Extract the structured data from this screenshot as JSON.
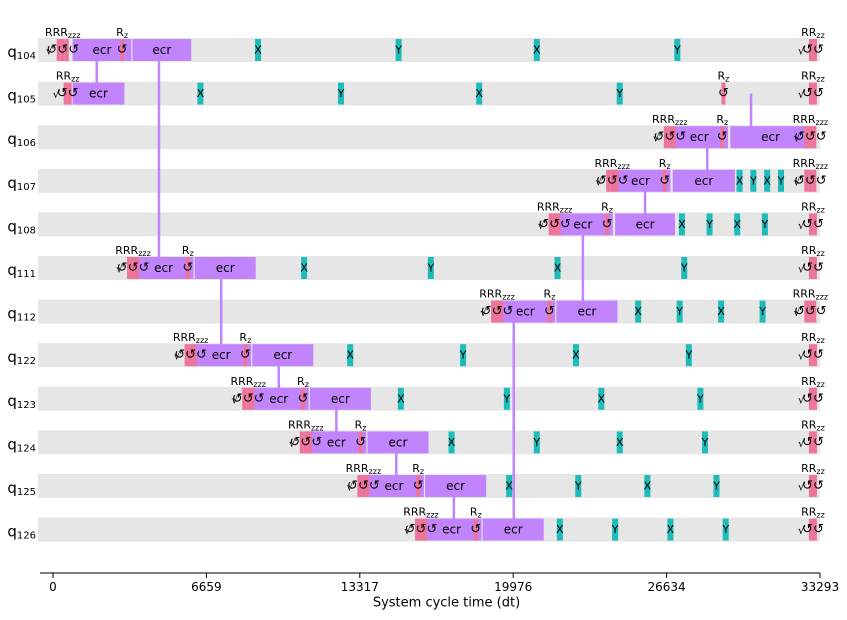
{
  "diagram": {
    "type": "quantum-circuit-timeline",
    "xlabel": "System cycle time (dt)",
    "x_ticks": [
      0,
      6659,
      13317,
      19976,
      26634,
      33293
    ],
    "x_range": [
      0,
      33293
    ],
    "colors": {
      "lane": "#e6e6e6",
      "rz": "#ee7499",
      "sx": "#ee7499",
      "ecr": "#c184fc",
      "single": "#1ebbbb",
      "link": "#c184fc",
      "axis": "#000000"
    },
    "qubits": [
      {
        "name": "q",
        "sub": "104"
      },
      {
        "name": "q",
        "sub": "105"
      },
      {
        "name": "q",
        "sub": "106"
      },
      {
        "name": "q",
        "sub": "107"
      },
      {
        "name": "q",
        "sub": "108"
      },
      {
        "name": "q",
        "sub": "111"
      },
      {
        "name": "q",
        "sub": "112"
      },
      {
        "name": "q",
        "sub": "122"
      },
      {
        "name": "q",
        "sub": "123"
      },
      {
        "name": "q",
        "sub": "124"
      },
      {
        "name": "q",
        "sub": "125"
      },
      {
        "name": "q",
        "sub": "126"
      }
    ],
    "labels": {
      "ecr": "ecr",
      "x": "X",
      "y": "Y",
      "rz": "R",
      "rz_sub": "z",
      "sx": "√X"
    },
    "ecr_blocks": [
      {
        "lane": 0,
        "start": 850,
        "end": 3400
      },
      {
        "lane": 0,
        "start": 3450,
        "end": 6000
      },
      {
        "lane": 1,
        "start": 850,
        "end": 3100
      },
      {
        "lane": 2,
        "start": 26800,
        "end": 29300
      },
      {
        "lane": 2,
        "start": 29400,
        "end": 32900
      },
      {
        "lane": 3,
        "start": 24200,
        "end": 26800
      },
      {
        "lane": 3,
        "start": 26900,
        "end": 29600
      },
      {
        "lane": 4,
        "start": 21700,
        "end": 24300
      },
      {
        "lane": 4,
        "start": 24400,
        "end": 27000
      },
      {
        "lane": 5,
        "start": 3500,
        "end": 6100
      },
      {
        "lane": 5,
        "start": 6150,
        "end": 8800
      },
      {
        "lane": 6,
        "start": 19200,
        "end": 21800
      },
      {
        "lane": 6,
        "start": 21850,
        "end": 24500
      },
      {
        "lane": 7,
        "start": 6000,
        "end": 8600
      },
      {
        "lane": 7,
        "start": 8650,
        "end": 11300
      },
      {
        "lane": 8,
        "start": 8500,
        "end": 11100
      },
      {
        "lane": 8,
        "start": 11150,
        "end": 13800
      },
      {
        "lane": 9,
        "start": 11000,
        "end": 13600
      },
      {
        "lane": 9,
        "start": 13650,
        "end": 16300
      },
      {
        "lane": 10,
        "start": 13500,
        "end": 16100
      },
      {
        "lane": 10,
        "start": 16150,
        "end": 18800
      },
      {
        "lane": 11,
        "start": 16000,
        "end": 18600
      },
      {
        "lane": 11,
        "start": 18650,
        "end": 21300
      }
    ],
    "links": [
      {
        "from": 0,
        "to": 1,
        "x": 1900
      },
      {
        "from": 0,
        "to": 5,
        "x": 4600
      },
      {
        "from": 2,
        "to": 1,
        "x": 30300
      },
      {
        "from": 2,
        "to": 3,
        "x": 28400
      },
      {
        "from": 3,
        "to": 4,
        "x": 25700
      },
      {
        "from": 4,
        "to": 6,
        "x": 23000
      },
      {
        "from": 5,
        "to": 7,
        "x": 7300
      },
      {
        "from": 7,
        "to": 8,
        "x": 9800
      },
      {
        "from": 8,
        "to": 9,
        "x": 12300
      },
      {
        "from": 9,
        "to": 10,
        "x": 14900
      },
      {
        "from": 10,
        "to": 11,
        "x": 17400
      },
      {
        "from": 6,
        "to": 11,
        "x": 20000
      }
    ],
    "single_gates": [
      {
        "lane": 0,
        "t": 8900,
        "g": "x"
      },
      {
        "lane": 0,
        "t": 15000,
        "g": "y"
      },
      {
        "lane": 0,
        "t": 21000,
        "g": "x"
      },
      {
        "lane": 0,
        "t": 27100,
        "g": "y"
      },
      {
        "lane": 1,
        "t": 6400,
        "g": "x"
      },
      {
        "lane": 1,
        "t": 12500,
        "g": "y"
      },
      {
        "lane": 1,
        "t": 18500,
        "g": "x"
      },
      {
        "lane": 1,
        "t": 24600,
        "g": "y"
      },
      {
        "lane": 3,
        "t": 29800,
        "g": "x"
      },
      {
        "lane": 3,
        "t": 30400,
        "g": "y"
      },
      {
        "lane": 3,
        "t": 31000,
        "g": "x"
      },
      {
        "lane": 3,
        "t": 31600,
        "g": "y"
      },
      {
        "lane": 4,
        "t": 27300,
        "g": "x"
      },
      {
        "lane": 4,
        "t": 28500,
        "g": "y"
      },
      {
        "lane": 4,
        "t": 29700,
        "g": "x"
      },
      {
        "lane": 4,
        "t": 30900,
        "g": "y"
      },
      {
        "lane": 5,
        "t": 10900,
        "g": "x"
      },
      {
        "lane": 5,
        "t": 16400,
        "g": "y"
      },
      {
        "lane": 5,
        "t": 21900,
        "g": "x"
      },
      {
        "lane": 5,
        "t": 27400,
        "g": "y"
      },
      {
        "lane": 6,
        "t": 25400,
        "g": "x"
      },
      {
        "lane": 6,
        "t": 27200,
        "g": "y"
      },
      {
        "lane": 6,
        "t": 29000,
        "g": "x"
      },
      {
        "lane": 6,
        "t": 30800,
        "g": "y"
      },
      {
        "lane": 7,
        "t": 12900,
        "g": "x"
      },
      {
        "lane": 7,
        "t": 17800,
        "g": "y"
      },
      {
        "lane": 7,
        "t": 22700,
        "g": "x"
      },
      {
        "lane": 7,
        "t": 27600,
        "g": "y"
      },
      {
        "lane": 8,
        "t": 15100,
        "g": "x"
      },
      {
        "lane": 8,
        "t": 19700,
        "g": "y"
      },
      {
        "lane": 8,
        "t": 23800,
        "g": "x"
      },
      {
        "lane": 8,
        "t": 28100,
        "g": "y"
      },
      {
        "lane": 9,
        "t": 17300,
        "g": "x"
      },
      {
        "lane": 9,
        "t": 21000,
        "g": "y"
      },
      {
        "lane": 9,
        "t": 24600,
        "g": "x"
      },
      {
        "lane": 9,
        "t": 28300,
        "g": "y"
      },
      {
        "lane": 10,
        "t": 19800,
        "g": "x"
      },
      {
        "lane": 10,
        "t": 22800,
        "g": "y"
      },
      {
        "lane": 10,
        "t": 25800,
        "g": "x"
      },
      {
        "lane": 10,
        "t": 28800,
        "g": "y"
      },
      {
        "lane": 11,
        "t": 22000,
        "g": "x"
      },
      {
        "lane": 11,
        "t": 24400,
        "g": "y"
      },
      {
        "lane": 11,
        "t": 26800,
        "g": "x"
      },
      {
        "lane": 11,
        "t": 29200,
        "g": "y"
      }
    ],
    "rz_clusters": [
      {
        "lane": 0,
        "t": 250,
        "n": 3
      },
      {
        "lane": 0,
        "t": 3000,
        "n": 1
      },
      {
        "lane": 0,
        "t": 32900,
        "n": 2
      },
      {
        "lane": 1,
        "t": 550,
        "n": 2
      },
      {
        "lane": 1,
        "t": 29100,
        "n": 1
      },
      {
        "lane": 1,
        "t": 32900,
        "n": 2
      },
      {
        "lane": 2,
        "t": 26600,
        "n": 3
      },
      {
        "lane": 2,
        "t": 29050,
        "n": 1
      },
      {
        "lane": 2,
        "t": 32700,
        "n": 3
      },
      {
        "lane": 3,
        "t": 24100,
        "n": 3
      },
      {
        "lane": 3,
        "t": 26550,
        "n": 1
      },
      {
        "lane": 3,
        "t": 32700,
        "n": 3
      },
      {
        "lane": 4,
        "t": 21600,
        "n": 3
      },
      {
        "lane": 4,
        "t": 24050,
        "n": 1
      },
      {
        "lane": 4,
        "t": 32900,
        "n": 2
      },
      {
        "lane": 5,
        "t": 3300,
        "n": 3
      },
      {
        "lane": 5,
        "t": 5850,
        "n": 1
      },
      {
        "lane": 5,
        "t": 32900,
        "n": 2
      },
      {
        "lane": 6,
        "t": 19100,
        "n": 3
      },
      {
        "lane": 6,
        "t": 21550,
        "n": 1
      },
      {
        "lane": 6,
        "t": 32700,
        "n": 3
      },
      {
        "lane": 7,
        "t": 5800,
        "n": 3
      },
      {
        "lane": 7,
        "t": 8350,
        "n": 1
      },
      {
        "lane": 7,
        "t": 32900,
        "n": 2
      },
      {
        "lane": 8,
        "t": 8300,
        "n": 3
      },
      {
        "lane": 8,
        "t": 10850,
        "n": 1
      },
      {
        "lane": 8,
        "t": 32900,
        "n": 2
      },
      {
        "lane": 9,
        "t": 10800,
        "n": 3
      },
      {
        "lane": 9,
        "t": 13350,
        "n": 1
      },
      {
        "lane": 9,
        "t": 32900,
        "n": 2
      },
      {
        "lane": 10,
        "t": 13300,
        "n": 3
      },
      {
        "lane": 10,
        "t": 15850,
        "n": 1
      },
      {
        "lane": 10,
        "t": 32900,
        "n": 2
      },
      {
        "lane": 11,
        "t": 15800,
        "n": 3
      },
      {
        "lane": 11,
        "t": 18350,
        "n": 1
      },
      {
        "lane": 11,
        "t": 32900,
        "n": 2
      }
    ]
  }
}
